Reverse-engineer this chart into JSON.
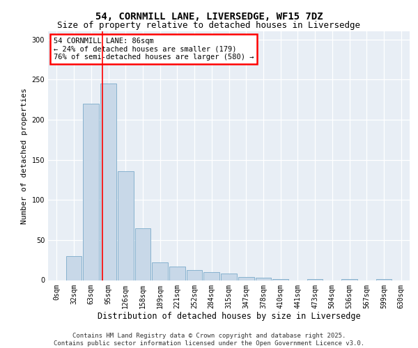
{
  "title1": "54, CORNMILL LANE, LIVERSEDGE, WF15 7DZ",
  "title2": "Size of property relative to detached houses in Liversedge",
  "xlabel": "Distribution of detached houses by size in Liversedge",
  "ylabel": "Number of detached properties",
  "categories": [
    "0sqm",
    "32sqm",
    "63sqm",
    "95sqm",
    "126sqm",
    "158sqm",
    "189sqm",
    "221sqm",
    "252sqm",
    "284sqm",
    "315sqm",
    "347sqm",
    "378sqm",
    "410sqm",
    "441sqm",
    "473sqm",
    "504sqm",
    "536sqm",
    "567sqm",
    "599sqm",
    "630sqm"
  ],
  "values": [
    0,
    30,
    220,
    245,
    136,
    65,
    22,
    17,
    13,
    10,
    8,
    4,
    3,
    1,
    0,
    1,
    0,
    1,
    0,
    1,
    0
  ],
  "bar_color": "#c8d8e8",
  "bar_edge_color": "#7aaaca",
  "bg_color": "#e8eef5",
  "annotation_text": "54 CORNMILL LANE: 86sqm\n← 24% of detached houses are smaller (179)\n76% of semi-detached houses are larger (580) →",
  "annotation_box_color": "white",
  "annotation_box_edge": "red",
  "vline_x": 2.65,
  "vline_color": "red",
  "ylim": [
    0,
    310
  ],
  "yticks": [
    0,
    50,
    100,
    150,
    200,
    250,
    300
  ],
  "footer": "Contains HM Land Registry data © Crown copyright and database right 2025.\nContains public sector information licensed under the Open Government Licence v3.0.",
  "title1_fontsize": 10,
  "title2_fontsize": 9,
  "xlabel_fontsize": 8.5,
  "ylabel_fontsize": 8,
  "tick_fontsize": 7,
  "annot_fontsize": 7.5,
  "footer_fontsize": 6.5
}
